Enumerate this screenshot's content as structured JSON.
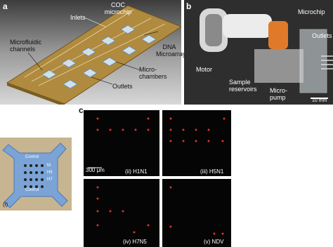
{
  "panel_a": {
    "label": "a",
    "annotations": [
      "COC microchip",
      "Inlets",
      "Microfluidic channels",
      "DNA Microarrays",
      "Micro-chambers",
      "Outlets"
    ]
  },
  "panel_b": {
    "label": "b",
    "annotations": [
      "Microchip",
      "Outlets",
      "Motor",
      "Sample reservoirs",
      "Micro-pump"
    ],
    "scale_bar": "10 mm"
  },
  "panel_c": {
    "label": "c",
    "schematic": {
      "label": "(i)",
      "texts": [
        "Control",
        "M",
        "H5",
        "H7",
        "Control"
      ]
    },
    "scale_bar": "300 μm",
    "images": [
      "(ii) H1N1",
      "(iii) H5N1",
      "(iv) H7N5",
      "(v) NDV"
    ]
  }
}
